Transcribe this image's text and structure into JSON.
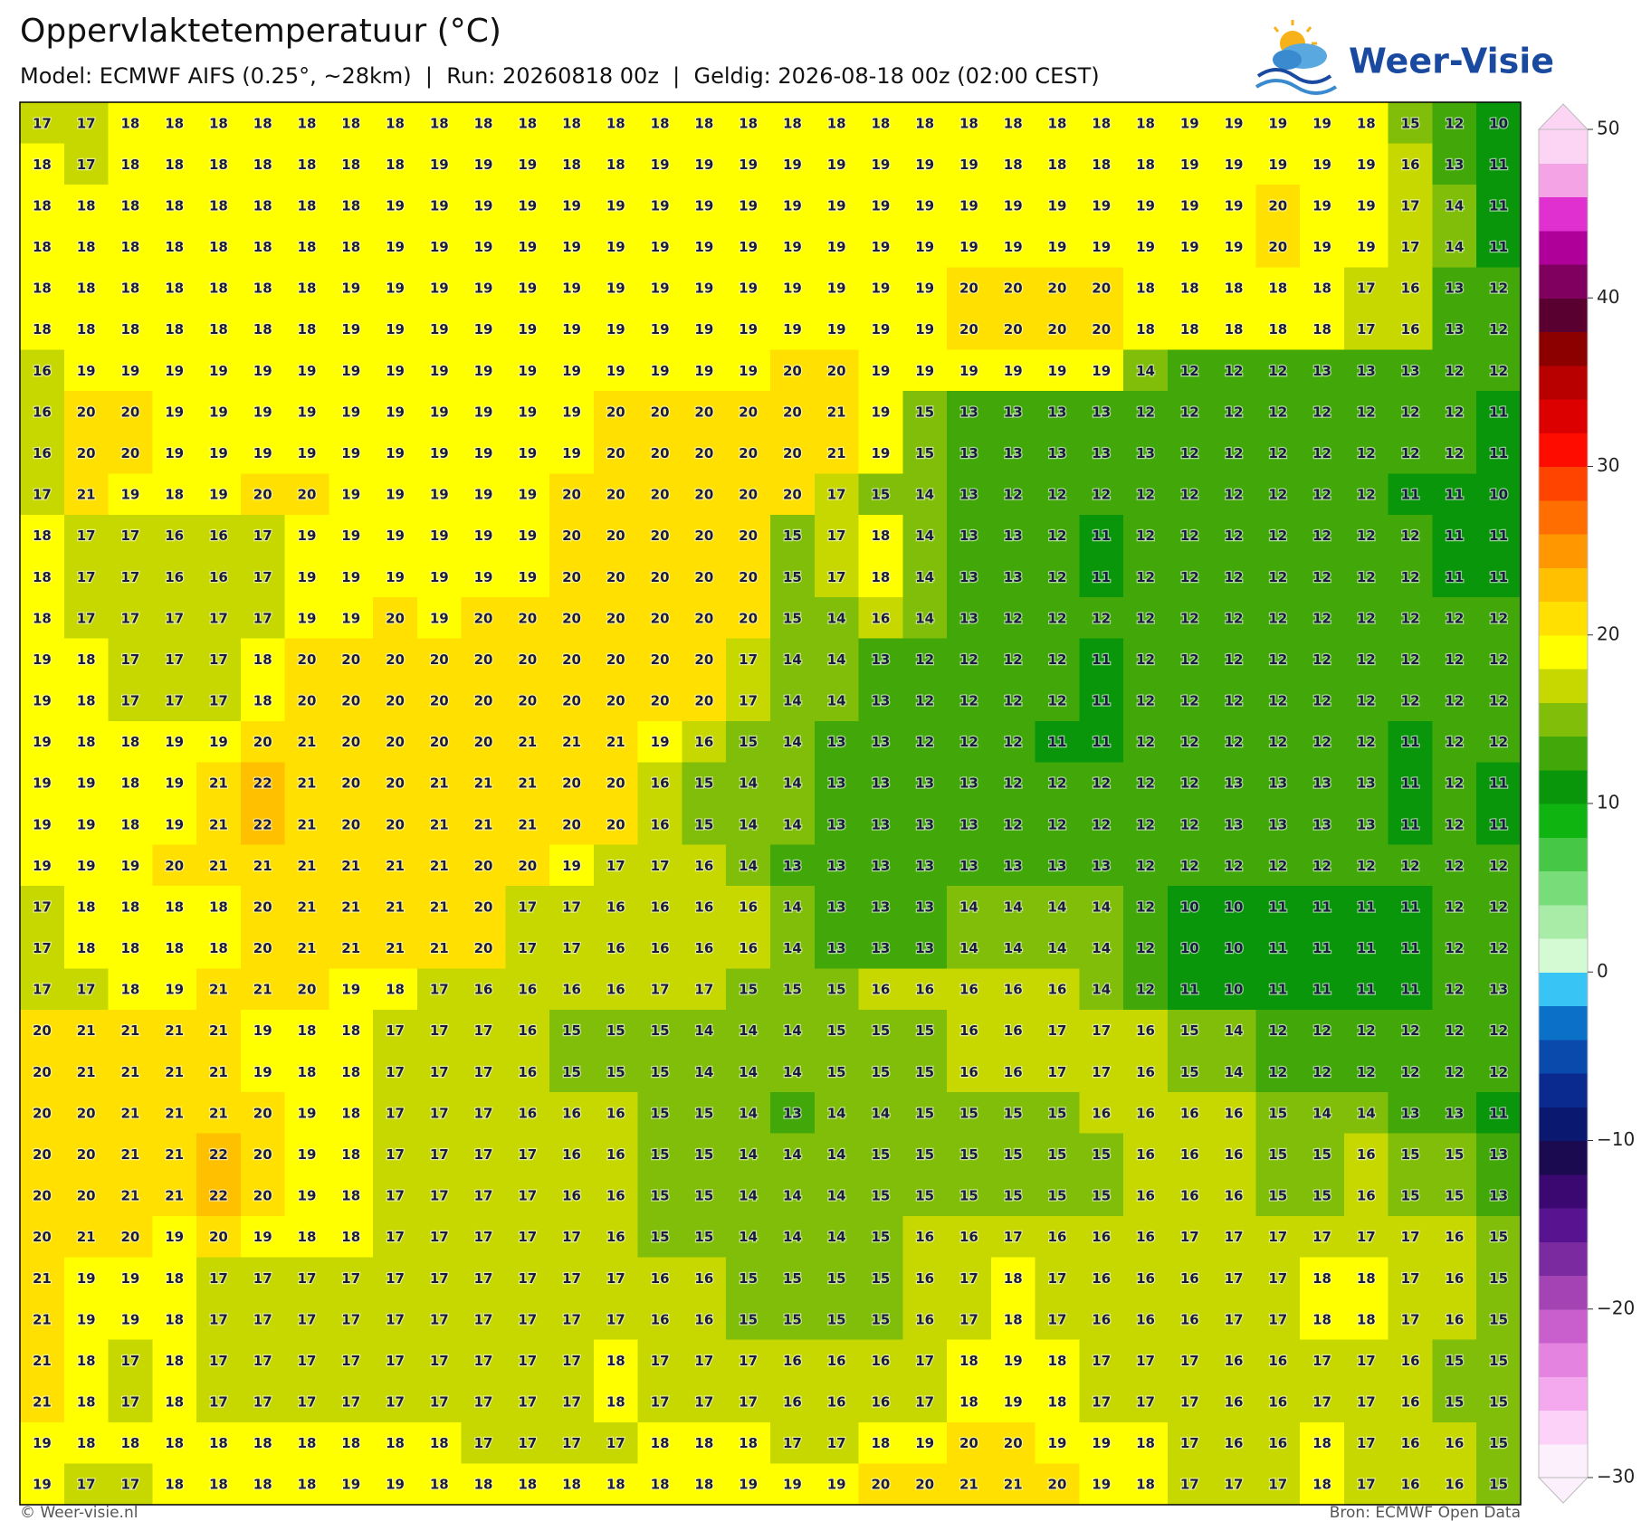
{
  "header": {
    "title": "Oppervlaktetemperatuur (°C)",
    "subtitle": "Model: ECMWF AIFS (0.25°, ~28km)  |  Run: 20260818 00z  |  Geldig: 2026-08-18 00z (02:00 CEST)",
    "logo": "Weer-Visie"
  },
  "map": {
    "rows": [
      [
        17,
        17,
        18,
        18,
        18,
        18,
        18,
        18,
        18,
        18,
        18,
        18,
        18,
        18,
        18,
        18,
        18,
        18,
        18,
        18,
        18,
        18,
        18,
        18,
        18,
        18,
        19,
        19,
        19,
        19,
        18,
        15,
        12,
        10
      ],
      [
        18,
        17,
        18,
        18,
        18,
        18,
        18,
        18,
        18,
        19,
        19,
        19,
        18,
        18,
        19,
        19,
        19,
        19,
        19,
        19,
        19,
        19,
        18,
        18,
        18,
        18,
        19,
        19,
        19,
        19,
        19,
        16,
        13,
        11
      ],
      [
        18,
        18,
        18,
        18,
        18,
        18,
        18,
        18,
        19,
        19,
        19,
        19,
        19,
        19,
        19,
        19,
        19,
        19,
        19,
        19,
        19,
        19,
        19,
        19,
        19,
        19,
        19,
        19,
        20,
        19,
        19,
        17,
        14,
        11
      ],
      [
        18,
        18,
        18,
        18,
        18,
        18,
        18,
        18,
        19,
        19,
        19,
        19,
        19,
        19,
        19,
        19,
        19,
        19,
        19,
        19,
        19,
        19,
        19,
        19,
        19,
        19,
        19,
        19,
        20,
        19,
        19,
        17,
        14,
        11
      ],
      [
        18,
        18,
        18,
        18,
        18,
        18,
        18,
        19,
        19,
        19,
        19,
        19,
        19,
        19,
        19,
        19,
        19,
        19,
        19,
        19,
        19,
        20,
        20,
        20,
        20,
        18,
        18,
        18,
        18,
        18,
        17,
        16,
        13,
        12
      ],
      [
        18,
        18,
        18,
        18,
        18,
        18,
        18,
        19,
        19,
        19,
        19,
        19,
        19,
        19,
        19,
        19,
        19,
        19,
        19,
        19,
        19,
        20,
        20,
        20,
        20,
        18,
        18,
        18,
        18,
        18,
        17,
        16,
        13,
        12
      ],
      [
        16,
        19,
        19,
        19,
        19,
        19,
        19,
        19,
        19,
        19,
        19,
        19,
        19,
        19,
        19,
        19,
        19,
        20,
        20,
        19,
        19,
        19,
        19,
        19,
        19,
        14,
        12,
        12,
        12,
        13,
        13,
        13,
        12,
        12
      ],
      [
        16,
        20,
        20,
        19,
        19,
        19,
        19,
        19,
        19,
        19,
        19,
        19,
        19,
        20,
        20,
        20,
        20,
        20,
        21,
        19,
        15,
        13,
        13,
        13,
        13,
        12,
        12,
        12,
        12,
        12,
        12,
        12,
        12,
        11
      ],
      [
        16,
        20,
        20,
        19,
        19,
        19,
        19,
        19,
        19,
        19,
        19,
        19,
        19,
        20,
        20,
        20,
        20,
        20,
        21,
        19,
        15,
        13,
        13,
        13,
        13,
        13,
        12,
        12,
        12,
        12,
        12,
        12,
        12,
        11
      ],
      [
        17,
        21,
        19,
        18,
        19,
        20,
        20,
        19,
        19,
        19,
        19,
        19,
        20,
        20,
        20,
        20,
        20,
        20,
        17,
        15,
        14,
        13,
        12,
        12,
        12,
        12,
        12,
        12,
        12,
        12,
        12,
        11,
        11,
        10
      ],
      [
        18,
        17,
        17,
        16,
        16,
        17,
        19,
        19,
        19,
        19,
        19,
        19,
        20,
        20,
        20,
        20,
        20,
        15,
        17,
        18,
        14,
        13,
        13,
        12,
        11,
        12,
        12,
        12,
        12,
        12,
        12,
        12,
        11,
        11
      ],
      [
        18,
        17,
        17,
        16,
        16,
        17,
        19,
        19,
        19,
        19,
        19,
        19,
        20,
        20,
        20,
        20,
        20,
        15,
        17,
        18,
        14,
        13,
        13,
        12,
        11,
        12,
        12,
        12,
        12,
        12,
        12,
        12,
        11,
        11
      ],
      [
        18,
        17,
        17,
        17,
        17,
        17,
        19,
        19,
        20,
        19,
        20,
        20,
        20,
        20,
        20,
        20,
        20,
        15,
        14,
        16,
        14,
        13,
        12,
        12,
        12,
        12,
        12,
        12,
        12,
        12,
        12,
        12,
        12,
        12
      ],
      [
        19,
        18,
        17,
        17,
        17,
        18,
        20,
        20,
        20,
        20,
        20,
        20,
        20,
        20,
        20,
        20,
        17,
        14,
        14,
        13,
        12,
        12,
        12,
        12,
        11,
        12,
        12,
        12,
        12,
        12,
        12,
        12,
        12,
        12
      ],
      [
        19,
        18,
        17,
        17,
        17,
        18,
        20,
        20,
        20,
        20,
        20,
        20,
        20,
        20,
        20,
        20,
        17,
        14,
        14,
        13,
        12,
        12,
        12,
        12,
        11,
        12,
        12,
        12,
        12,
        12,
        12,
        12,
        12,
        12
      ],
      [
        19,
        18,
        18,
        19,
        19,
        20,
        21,
        20,
        20,
        20,
        20,
        21,
        21,
        21,
        19,
        16,
        15,
        14,
        13,
        13,
        12,
        12,
        12,
        11,
        11,
        12,
        12,
        12,
        12,
        12,
        12,
        11,
        12,
        12
      ],
      [
        19,
        19,
        18,
        19,
        21,
        22,
        21,
        20,
        20,
        21,
        21,
        21,
        20,
        20,
        16,
        15,
        14,
        14,
        13,
        13,
        13,
        13,
        12,
        12,
        12,
        12,
        12,
        13,
        13,
        13,
        13,
        11,
        12,
        11
      ],
      [
        19,
        19,
        18,
        19,
        21,
        22,
        21,
        20,
        20,
        21,
        21,
        21,
        20,
        20,
        16,
        15,
        14,
        14,
        13,
        13,
        13,
        13,
        12,
        12,
        12,
        12,
        12,
        13,
        13,
        13,
        13,
        11,
        12,
        11
      ],
      [
        19,
        19,
        19,
        20,
        21,
        21,
        21,
        21,
        21,
        21,
        20,
        20,
        19,
        17,
        17,
        16,
        14,
        13,
        13,
        13,
        13,
        13,
        13,
        13,
        13,
        12,
        12,
        12,
        12,
        12,
        12,
        12,
        12,
        12
      ],
      [
        17,
        18,
        18,
        18,
        18,
        20,
        21,
        21,
        21,
        21,
        20,
        17,
        17,
        16,
        16,
        16,
        16,
        14,
        13,
        13,
        13,
        14,
        14,
        14,
        14,
        12,
        10,
        10,
        11,
        11,
        11,
        11,
        12,
        12
      ],
      [
        17,
        18,
        18,
        18,
        18,
        20,
        21,
        21,
        21,
        21,
        20,
        17,
        17,
        16,
        16,
        16,
        16,
        14,
        13,
        13,
        13,
        14,
        14,
        14,
        14,
        12,
        10,
        10,
        11,
        11,
        11,
        11,
        12,
        12
      ],
      [
        17,
        17,
        18,
        19,
        21,
        21,
        20,
        19,
        18,
        17,
        16,
        16,
        16,
        16,
        17,
        17,
        15,
        15,
        15,
        16,
        16,
        16,
        16,
        16,
        14,
        12,
        11,
        10,
        11,
        11,
        11,
        11,
        12,
        13
      ],
      [
        20,
        21,
        21,
        21,
        21,
        19,
        18,
        18,
        17,
        17,
        17,
        16,
        15,
        15,
        15,
        14,
        14,
        14,
        15,
        15,
        15,
        16,
        16,
        17,
        17,
        16,
        15,
        14,
        12,
        12,
        12,
        12,
        12,
        12
      ],
      [
        20,
        21,
        21,
        21,
        21,
        19,
        18,
        18,
        17,
        17,
        17,
        16,
        15,
        15,
        15,
        14,
        14,
        14,
        15,
        15,
        15,
        16,
        16,
        17,
        17,
        16,
        15,
        14,
        12,
        12,
        12,
        12,
        12,
        12
      ],
      [
        20,
        20,
        21,
        21,
        21,
        20,
        19,
        18,
        17,
        17,
        17,
        16,
        16,
        16,
        15,
        15,
        14,
        13,
        14,
        14,
        15,
        15,
        15,
        15,
        16,
        16,
        16,
        16,
        15,
        14,
        14,
        13,
        13,
        11
      ],
      [
        20,
        20,
        21,
        21,
        22,
        20,
        19,
        18,
        17,
        17,
        17,
        17,
        16,
        16,
        15,
        15,
        14,
        14,
        14,
        15,
        15,
        15,
        15,
        15,
        15,
        16,
        16,
        16,
        15,
        15,
        16,
        15,
        15,
        13
      ],
      [
        20,
        20,
        21,
        21,
        22,
        20,
        19,
        18,
        17,
        17,
        17,
        17,
        16,
        16,
        15,
        15,
        14,
        14,
        14,
        15,
        15,
        15,
        15,
        15,
        15,
        16,
        16,
        16,
        15,
        15,
        16,
        15,
        15,
        13
      ],
      [
        20,
        21,
        20,
        19,
        20,
        19,
        18,
        18,
        17,
        17,
        17,
        17,
        17,
        16,
        15,
        15,
        14,
        14,
        14,
        15,
        16,
        16,
        17,
        16,
        16,
        16,
        17,
        17,
        17,
        17,
        17,
        17,
        16,
        15
      ],
      [
        21,
        19,
        19,
        18,
        17,
        17,
        17,
        17,
        17,
        17,
        17,
        17,
        17,
        17,
        16,
        16,
        15,
        15,
        15,
        15,
        16,
        17,
        18,
        17,
        16,
        16,
        16,
        17,
        17,
        18,
        18,
        17,
        16,
        15
      ],
      [
        21,
        19,
        19,
        18,
        17,
        17,
        17,
        17,
        17,
        17,
        17,
        17,
        17,
        17,
        16,
        16,
        15,
        15,
        15,
        15,
        16,
        17,
        18,
        17,
        16,
        16,
        16,
        17,
        17,
        18,
        18,
        17,
        16,
        15
      ],
      [
        21,
        18,
        17,
        18,
        17,
        17,
        17,
        17,
        17,
        17,
        17,
        17,
        17,
        18,
        17,
        17,
        17,
        16,
        16,
        16,
        17,
        18,
        19,
        18,
        17,
        17,
        17,
        16,
        16,
        17,
        17,
        16,
        15,
        15
      ],
      [
        21,
        18,
        17,
        18,
        17,
        17,
        17,
        17,
        17,
        17,
        17,
        17,
        17,
        18,
        17,
        17,
        17,
        16,
        16,
        16,
        17,
        18,
        19,
        18,
        17,
        17,
        17,
        16,
        16,
        17,
        17,
        16,
        15,
        15
      ],
      [
        19,
        18,
        18,
        18,
        18,
        18,
        18,
        18,
        18,
        18,
        17,
        17,
        17,
        17,
        18,
        18,
        18,
        17,
        17,
        18,
        19,
        20,
        20,
        19,
        19,
        18,
        17,
        16,
        16,
        18,
        17,
        16,
        16,
        15
      ],
      [
        19,
        17,
        17,
        18,
        18,
        18,
        18,
        19,
        19,
        18,
        18,
        18,
        18,
        18,
        18,
        18,
        19,
        19,
        19,
        20,
        20,
        21,
        21,
        20,
        19,
        18,
        17,
        17,
        17,
        18,
        17,
        16,
        16,
        15
      ]
    ]
  },
  "colorbar": {
    "lim": [
      -30,
      50
    ],
    "ticks": [
      {
        "value": -30,
        "label": "−30"
      },
      {
        "value": -20,
        "label": "−20"
      },
      {
        "value": -10,
        "label": "−10"
      },
      0,
      10,
      20,
      30,
      40,
      50
    ],
    "colors": [
      "#fdf0fd",
      "#fcd2f8",
      "#f4a8ee",
      "#e484e0",
      "#c95fcc",
      "#a444b4",
      "#7b2aa0",
      "#581490",
      "#3a0870",
      "#1c0a50",
      "#0a1870",
      "#0a2a90",
      "#0a4aac",
      "#0a70c8",
      "#38c4f4",
      "#d4fad4",
      "#a8eca8",
      "#78dc78",
      "#46c846",
      "#10b410",
      "#0a960a",
      "#42a80a",
      "#80be0a",
      "#c6d800",
      "#ffff00",
      "#ffe000",
      "#ffc000",
      "#ff9800",
      "#ff6e00",
      "#ff4400",
      "#ff0c00",
      "#dd0000",
      "#b80000",
      "#8c0000",
      "#5a0030",
      "#800060",
      "#b0009a",
      "#e030d0",
      "#f4a4e4",
      "#fcd4f4"
    ]
  },
  "footer": {
    "credit": "© Weer-visie.nl",
    "source": "Bron: ECMWF Open Data"
  }
}
